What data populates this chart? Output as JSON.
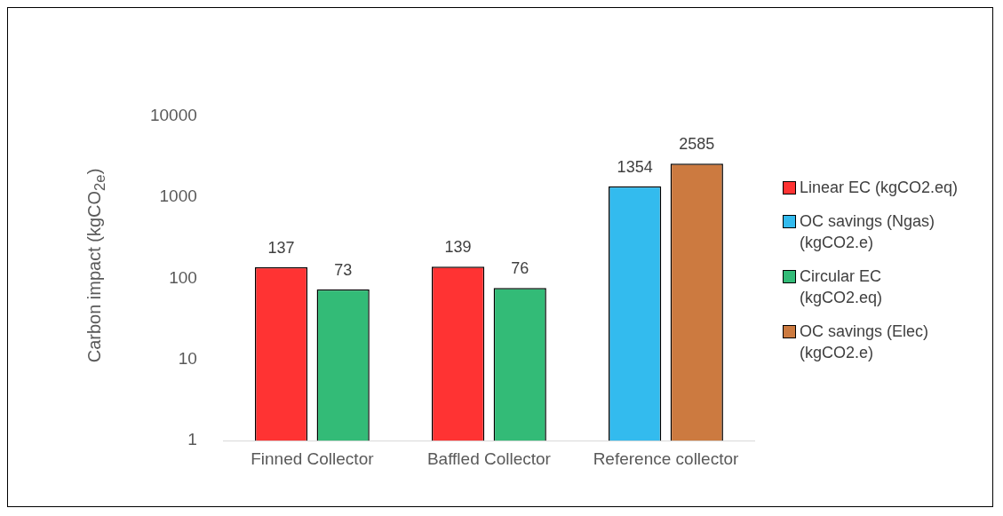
{
  "chart_data": {
    "type": "bar",
    "ylabel": "Carbon impact (kgCO$_{2e}$)",
    "categories": [
      "Finned Collector",
      "Baffled Collector",
      "Reference collector"
    ],
    "series": [
      {
        "name": "Linear EC (kgCO2.eq)",
        "color": "#ff3333",
        "values": [
          137,
          139,
          null
        ]
      },
      {
        "name": "OC savings (Ngas) (kgCO2.e)",
        "color": "#33bbee",
        "values": [
          null,
          null,
          1354
        ]
      },
      {
        "name": "Circular EC (kgCO2.eq)",
        "color": "#33bb77",
        "values": [
          73,
          76,
          null
        ]
      },
      {
        "name": "OC savings (Elec) (kgCO2.e)",
        "color": "#cc7a40",
        "values": [
          null,
          null,
          2585
        ]
      }
    ],
    "log": "y",
    "ylim": [
      1,
      10000
    ],
    "yticks": [
      1,
      10,
      100,
      1000,
      10000
    ],
    "grid": false,
    "legend": "right",
    "data_labels": true
  }
}
